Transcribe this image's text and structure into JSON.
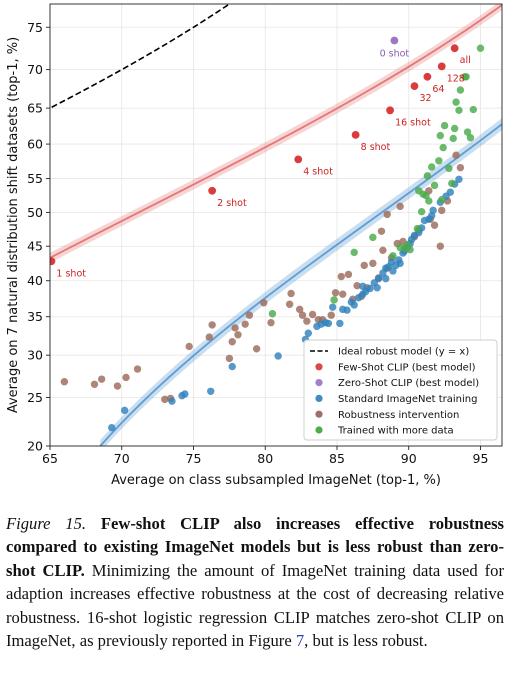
{
  "chart_data": {
    "type": "scatter",
    "xlabel": "Average on class subsampled ImageNet (top-1, %)",
    "ylabel": "Average on 7 natural distribution shift datasets (top-1, %)",
    "xlim": [
      65,
      96.5
    ],
    "ylim": [
      20,
      77.5
    ],
    "x_ticks": [
      65,
      70,
      75,
      80,
      85,
      90,
      95
    ],
    "y_ticks": [
      20,
      25,
      30,
      35,
      40,
      45,
      50,
      55,
      60,
      65,
      70,
      75
    ],
    "y_scale": "logit",
    "grid": true,
    "legend_position": "bottom-right",
    "legend": [
      {
        "label": "Ideal robust model (y = x)",
        "style": "dashed-line",
        "color": "#000000"
      },
      {
        "label": "Few-Shot CLIP (best model)",
        "style": "point",
        "color": "#d62728"
      },
      {
        "label": "Zero-Shot CLIP (best model)",
        "style": "point",
        "color": "#9467bd"
      },
      {
        "label": "Standard ImageNet training",
        "style": "point",
        "color": "#1f77b4"
      },
      {
        "label": "Robustness intervention",
        "style": "point",
        "color": "#8c564b"
      },
      {
        "label": "Trained with more data",
        "style": "point",
        "color": "#2ca02c"
      }
    ],
    "few_shot_points": [
      {
        "x": 65.1,
        "y": 42.8,
        "label": "1 shot"
      },
      {
        "x": 76.3,
        "y": 53.2,
        "label": "2 shot"
      },
      {
        "x": 82.3,
        "y": 57.8,
        "label": "4 shot"
      },
      {
        "x": 86.3,
        "y": 61.3,
        "label": "8 shot"
      },
      {
        "x": 88.7,
        "y": 64.7,
        "label": "16 shot"
      },
      {
        "x": 90.4,
        "y": 67.9,
        "label": "32"
      },
      {
        "x": 91.3,
        "y": 69.1,
        "label": "64"
      },
      {
        "x": 92.3,
        "y": 70.4,
        "label": "128"
      },
      {
        "x": 93.2,
        "y": 72.6,
        "label": "all"
      }
    ],
    "zero_shot_points": [
      {
        "x": 89.0,
        "y": 73.5,
        "label": "0 shot"
      }
    ],
    "few_shot_fit": {
      "x": [
        65,
        96.5
      ],
      "y": [
        43.3,
        77.4
      ]
    },
    "standard_fit": {
      "x": [
        68.5,
        96.5
      ],
      "y": [
        20,
        62.8
      ]
    },
    "standard_points": [
      [
        69.3,
        21.8
      ],
      [
        70.2,
        23.6
      ],
      [
        73.5,
        24.6
      ],
      [
        74.2,
        25.2
      ],
      [
        74.4,
        25.4
      ],
      [
        76.2,
        25.7
      ],
      [
        77.7,
        28.6
      ],
      [
        80.9,
        29.9
      ],
      [
        82.8,
        32.0
      ],
      [
        83.0,
        32.8
      ],
      [
        83.6,
        33.7
      ],
      [
        83.9,
        34.0
      ],
      [
        84.2,
        34.2
      ],
      [
        84.4,
        34.1
      ],
      [
        84.7,
        36.3
      ],
      [
        85.2,
        34.1
      ],
      [
        85.4,
        36.0
      ],
      [
        85.7,
        35.9
      ],
      [
        86.0,
        37.0
      ],
      [
        86.2,
        36.6
      ],
      [
        86.5,
        37.6
      ],
      [
        86.8,
        38.1
      ],
      [
        87.0,
        38.5
      ],
      [
        87.3,
        38.9
      ],
      [
        87.6,
        39.7
      ],
      [
        87.9,
        40.3
      ],
      [
        88.2,
        41.1
      ],
      [
        88.4,
        41.8
      ],
      [
        88.6,
        42.0
      ],
      [
        88.8,
        42.7
      ],
      [
        88.9,
        41.4
      ],
      [
        89.1,
        42.2
      ],
      [
        89.3,
        43.0
      ],
      [
        89.4,
        42.5
      ],
      [
        89.6,
        44.0
      ],
      [
        89.7,
        44.3
      ],
      [
        89.9,
        44.8
      ],
      [
        90.1,
        45.4
      ],
      [
        90.2,
        46.0
      ],
      [
        90.4,
        46.6
      ],
      [
        90.7,
        47.0
      ],
      [
        90.9,
        47.7
      ],
      [
        91.1,
        48.8
      ],
      [
        91.4,
        49.0
      ],
      [
        91.6,
        49.5
      ],
      [
        91.7,
        50.3
      ],
      [
        92.2,
        51.5
      ],
      [
        92.6,
        52.4
      ],
      [
        92.9,
        53.0
      ],
      [
        93.2,
        54.2
      ],
      [
        93.5,
        54.9
      ],
      [
        86.8,
        39.2
      ],
      [
        87.8,
        39.0
      ],
      [
        88.4,
        40.3
      ]
    ],
    "robustness_points": [
      [
        66.0,
        26.8
      ],
      [
        68.1,
        26.5
      ],
      [
        68.6,
        27.1
      ],
      [
        69.7,
        26.3
      ],
      [
        70.3,
        27.3
      ],
      [
        71.1,
        28.3
      ],
      [
        73.0,
        24.8
      ],
      [
        73.4,
        24.9
      ],
      [
        74.7,
        31.1
      ],
      [
        76.1,
        32.3
      ],
      [
        76.3,
        33.9
      ],
      [
        77.5,
        29.6
      ],
      [
        77.7,
        31.7
      ],
      [
        77.9,
        33.5
      ],
      [
        78.1,
        32.6
      ],
      [
        78.6,
        34.0
      ],
      [
        78.9,
        35.2
      ],
      [
        79.4,
        30.8
      ],
      [
        79.9,
        36.9
      ],
      [
        80.4,
        34.2
      ],
      [
        81.7,
        36.7
      ],
      [
        81.8,
        38.2
      ],
      [
        82.4,
        36.0
      ],
      [
        82.6,
        35.2
      ],
      [
        82.9,
        34.4
      ],
      [
        83.3,
        35.3
      ],
      [
        83.7,
        34.6
      ],
      [
        84.0,
        34.6
      ],
      [
        84.6,
        35.2
      ],
      [
        84.9,
        38.3
      ],
      [
        85.3,
        40.6
      ],
      [
        85.8,
        40.9
      ],
      [
        86.1,
        37.4
      ],
      [
        86.4,
        39.3
      ],
      [
        86.7,
        37.8
      ],
      [
        86.9,
        42.2
      ],
      [
        87.1,
        39.0
      ],
      [
        87.5,
        42.5
      ],
      [
        87.9,
        40.4
      ],
      [
        88.2,
        44.4
      ],
      [
        88.5,
        41.8
      ],
      [
        88.8,
        43.3
      ],
      [
        89.2,
        45.4
      ],
      [
        89.6,
        45.7
      ],
      [
        90.4,
        46.4
      ],
      [
        90.7,
        47.4
      ],
      [
        91.5,
        49.0
      ],
      [
        91.8,
        48.1
      ],
      [
        92.3,
        50.3
      ],
      [
        92.7,
        51.7
      ],
      [
        93.3,
        58.4
      ],
      [
        93.6,
        56.6
      ],
      [
        92.2,
        45.0
      ],
      [
        89.4,
        50.9
      ],
      [
        91.4,
        53.2
      ],
      [
        88.5,
        49.7
      ],
      [
        88.1,
        47.2
      ],
      [
        85.4,
        38.1
      ]
    ],
    "more_data_points": [
      [
        80.5,
        35.4
      ],
      [
        84.8,
        37.3
      ],
      [
        86.2,
        44.1
      ],
      [
        87.5,
        46.3
      ],
      [
        88.9,
        43.6
      ],
      [
        89.4,
        44.8
      ],
      [
        89.7,
        44.7
      ],
      [
        89.9,
        45.2
      ],
      [
        90.1,
        44.5
      ],
      [
        90.6,
        47.6
      ],
      [
        90.9,
        50.1
      ],
      [
        91.2,
        52.5
      ],
      [
        91.3,
        55.4
      ],
      [
        91.4,
        51.7
      ],
      [
        91.6,
        56.7
      ],
      [
        91.8,
        54.0
      ],
      [
        92.1,
        57.6
      ],
      [
        92.3,
        51.9
      ],
      [
        92.5,
        62.6
      ],
      [
        92.8,
        56.5
      ],
      [
        93.0,
        54.3
      ],
      [
        93.1,
        60.8
      ],
      [
        93.2,
        62.2
      ],
      [
        93.3,
        65.8
      ],
      [
        93.6,
        67.4
      ],
      [
        93.9,
        69.1
      ],
      [
        94.0,
        69.1
      ],
      [
        94.1,
        61.7
      ],
      [
        94.3,
        60.9
      ],
      [
        94.5,
        64.8
      ],
      [
        95.0,
        72.6
      ],
      [
        92.4,
        59.5
      ],
      [
        93.5,
        64.7
      ],
      [
        91.0,
        52.7
      ],
      [
        90.7,
        53.2
      ],
      [
        92.2,
        61.2
      ]
    ]
  },
  "caption": {
    "figure_label": "Figure 15.",
    "bold_text": "Few-shot CLIP also increases effective robustness compared to existing ImageNet models but is less robust than zero-shot CLIP.",
    "body_text": "Minimizing the amount of ImageNet training data used for adaption increases effective robustness at the cost of decreasing relative robustness. 16-shot logistic regression CLIP matches zero-shot CLIP on ImageNet, as previously reported in Figure",
    "figure_ref": "7",
    "end_text": ", but is less robust."
  }
}
